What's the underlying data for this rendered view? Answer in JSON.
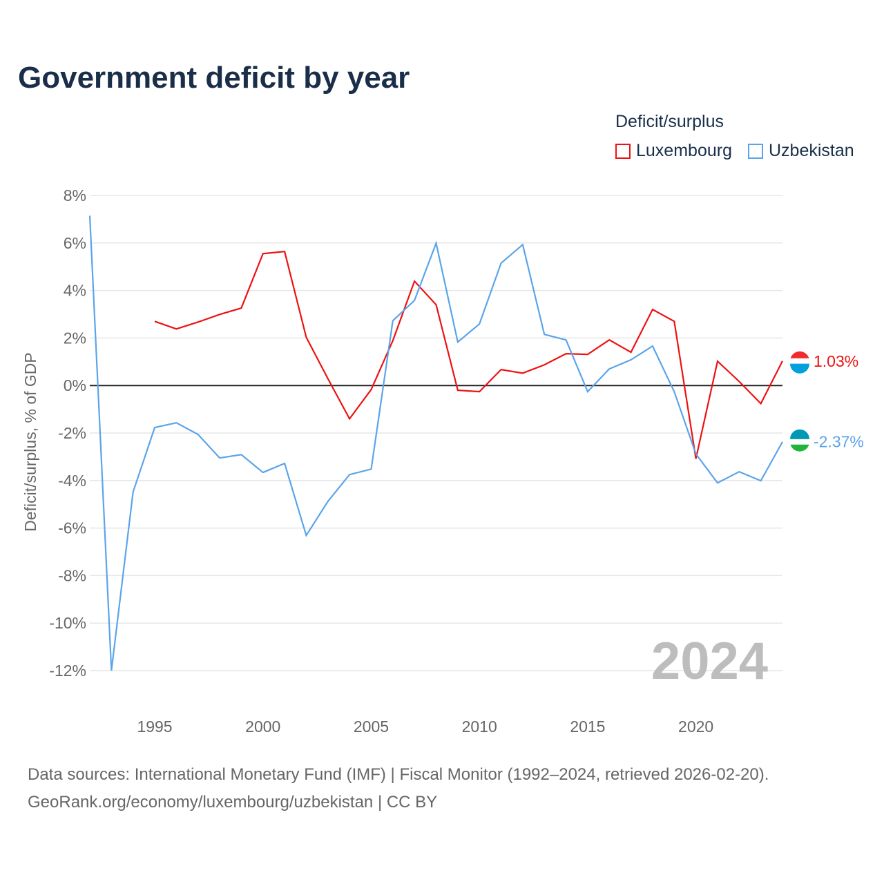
{
  "title": "Government deficit by year",
  "legend_title": "Deficit/surplus",
  "sources": [
    "Data sources: International Monetary Fund (IMF) | Fiscal Monitor (1992–2024, retrieved 2026-02-20).",
    "GeoRank.org/economy/luxembourg/uzbekistan | CC BY"
  ],
  "chart_data": {
    "type": "line",
    "ylabel": "Deficit/surplus, % of GDP",
    "ylim": [
      -12,
      8
    ],
    "yticks": [
      8,
      6,
      4,
      2,
      0,
      -2,
      -4,
      -6,
      -8,
      -10,
      -12
    ],
    "ytick_labels": [
      "8%",
      "6%",
      "4%",
      "2%",
      "0%",
      "-2%",
      "-4%",
      "-6%",
      "-8%",
      "-10%",
      "-12%"
    ],
    "xlim": [
      1992,
      2024
    ],
    "xticks": [
      "1995",
      "2000",
      "2005",
      "2010",
      "2015",
      "2020"
    ],
    "year_label": "2024",
    "series": [
      {
        "name": "Luxembourg",
        "color": "#ee1111",
        "end_label": "1.03%",
        "start": 1995,
        "values": [
          2.7,
          2.38,
          2.67,
          2.99,
          3.26,
          5.55,
          5.64,
          2.03,
          0.29,
          -1.4,
          -0.17,
          1.89,
          4.39,
          3.4,
          -0.2,
          -0.26,
          0.67,
          0.52,
          0.87,
          1.34,
          1.31,
          1.92,
          1.4,
          3.2,
          2.7,
          -3.08,
          1.02,
          0.17,
          -0.76,
          1.03
        ]
      },
      {
        "name": "Uzbekistan",
        "color": "#5ba4ea",
        "end_label": "-2.37%",
        "start": 1992,
        "values": [
          7.15,
          -12.0,
          -4.48,
          -1.77,
          -1.57,
          -2.06,
          -3.05,
          -2.91,
          -3.66,
          -3.28,
          -6.31,
          -4.88,
          -3.75,
          -3.52,
          2.73,
          3.58,
          5.99,
          1.83,
          2.59,
          5.15,
          5.93,
          2.15,
          1.92,
          -0.26,
          0.7,
          1.08,
          1.66,
          -0.26,
          -2.88,
          -4.1,
          -3.63,
          -4.01,
          -2.37
        ]
      }
    ]
  }
}
